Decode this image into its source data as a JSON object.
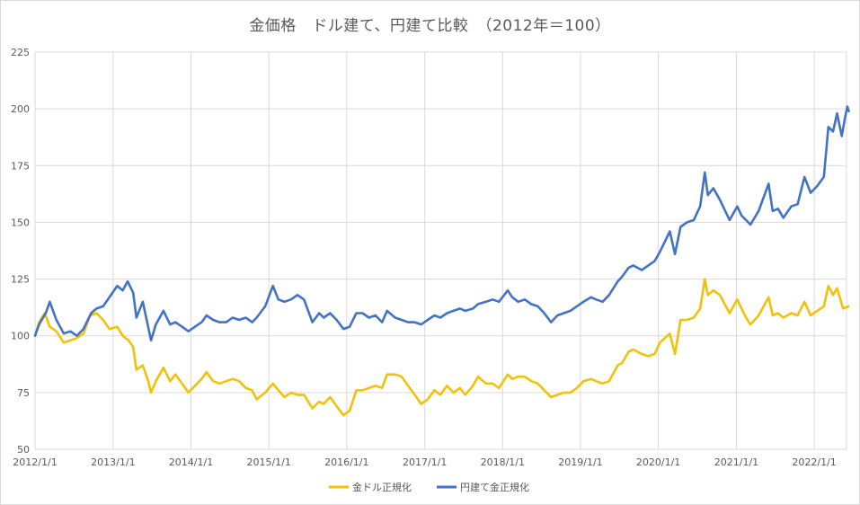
{
  "chart_data": {
    "type": "line",
    "title": "金価格　ドル建て、円建て比較　（2012年＝100）",
    "xlabel": "",
    "ylabel": "",
    "ylim": [
      50,
      225
    ],
    "yticks": [
      "50",
      "75",
      "100",
      "125",
      "150",
      "175",
      "200",
      "225"
    ],
    "xticks": [
      "2012/1/1",
      "2013/1/1",
      "2014/1/1",
      "2015/1/1",
      "2016/1/1",
      "2017/1/1",
      "2018/1/1",
      "2019/1/1",
      "2020/1/1",
      "2021/1/1",
      "2022/1/1"
    ],
    "xlim": [
      "2012-01-01",
      "2022-06-15"
    ],
    "grid": true,
    "legend_position": "bottom",
    "series": [
      {
        "name": "金ドル正規化",
        "color": "#f2c10a",
        "points": [
          [
            "2012-01-01",
            100
          ],
          [
            "2012-01-20",
            106
          ],
          [
            "2012-02-15",
            110
          ],
          [
            "2012-03-10",
            104
          ],
          [
            "2012-04-10",
            102
          ],
          [
            "2012-05-15",
            97
          ],
          [
            "2012-06-15",
            98
          ],
          [
            "2012-07-15",
            99
          ],
          [
            "2012-08-15",
            101
          ],
          [
            "2012-09-15",
            109
          ],
          [
            "2012-10-15",
            110
          ],
          [
            "2012-11-15",
            107
          ],
          [
            "2012-12-15",
            103
          ],
          [
            "2013-01-20",
            104
          ],
          [
            "2013-02-15",
            100
          ],
          [
            "2013-03-15",
            98
          ],
          [
            "2013-04-05",
            95
          ],
          [
            "2013-04-20",
            85
          ],
          [
            "2013-05-20",
            87
          ],
          [
            "2013-06-15",
            80
          ],
          [
            "2013-06-28",
            75
          ],
          [
            "2013-07-20",
            80
          ],
          [
            "2013-08-25",
            86
          ],
          [
            "2013-09-25",
            80
          ],
          [
            "2013-10-20",
            83
          ],
          [
            "2013-11-20",
            79
          ],
          [
            "2013-12-20",
            75
          ],
          [
            "2014-01-20",
            78
          ],
          [
            "2014-02-20",
            81
          ],
          [
            "2014-03-15",
            84
          ],
          [
            "2014-04-15",
            80
          ],
          [
            "2014-05-15",
            79
          ],
          [
            "2014-06-15",
            80
          ],
          [
            "2014-07-15",
            81
          ],
          [
            "2014-08-15",
            80
          ],
          [
            "2014-09-15",
            77
          ],
          [
            "2014-10-15",
            76
          ],
          [
            "2014-11-05",
            72
          ],
          [
            "2014-12-15",
            75
          ],
          [
            "2015-01-20",
            79
          ],
          [
            "2015-02-15",
            76
          ],
          [
            "2015-03-15",
            73
          ],
          [
            "2015-04-15",
            75
          ],
          [
            "2015-05-15",
            74
          ],
          [
            "2015-06-15",
            74
          ],
          [
            "2015-07-24",
            68
          ],
          [
            "2015-08-25",
            71
          ],
          [
            "2015-09-15",
            70
          ],
          [
            "2015-10-15",
            73
          ],
          [
            "2015-11-15",
            69
          ],
          [
            "2015-12-17",
            65
          ],
          [
            "2016-01-15",
            67
          ],
          [
            "2016-02-15",
            76
          ],
          [
            "2016-03-15",
            76
          ],
          [
            "2016-04-15",
            77
          ],
          [
            "2016-05-15",
            78
          ],
          [
            "2016-06-15",
            77
          ],
          [
            "2016-07-08",
            83
          ],
          [
            "2016-08-15",
            83
          ],
          [
            "2016-09-15",
            82
          ],
          [
            "2016-10-15",
            78
          ],
          [
            "2016-11-15",
            74
          ],
          [
            "2016-12-15",
            70
          ],
          [
            "2017-01-15",
            72
          ],
          [
            "2017-02-15",
            76
          ],
          [
            "2017-03-15",
            74
          ],
          [
            "2017-04-15",
            78
          ],
          [
            "2017-05-15",
            75
          ],
          [
            "2017-06-15",
            77
          ],
          [
            "2017-07-10",
            74
          ],
          [
            "2017-08-15",
            78
          ],
          [
            "2017-09-08",
            82
          ],
          [
            "2017-10-15",
            79
          ],
          [
            "2017-11-15",
            79
          ],
          [
            "2017-12-15",
            77
          ],
          [
            "2018-01-25",
            83
          ],
          [
            "2018-02-15",
            81
          ],
          [
            "2018-03-15",
            82
          ],
          [
            "2018-04-15",
            82
          ],
          [
            "2018-05-15",
            80
          ],
          [
            "2018-06-15",
            79
          ],
          [
            "2018-07-15",
            76
          ],
          [
            "2018-08-16",
            73
          ],
          [
            "2018-09-15",
            74
          ],
          [
            "2018-10-15",
            75
          ],
          [
            "2018-11-15",
            75
          ],
          [
            "2018-12-15",
            77
          ],
          [
            "2019-01-15",
            80
          ],
          [
            "2019-02-20",
            81
          ],
          [
            "2019-03-15",
            80
          ],
          [
            "2019-04-15",
            79
          ],
          [
            "2019-05-15",
            80
          ],
          [
            "2019-06-25",
            87
          ],
          [
            "2019-07-15",
            88
          ],
          [
            "2019-08-15",
            93
          ],
          [
            "2019-09-05",
            94
          ],
          [
            "2019-10-15",
            92
          ],
          [
            "2019-11-15",
            91
          ],
          [
            "2019-12-15",
            92
          ],
          [
            "2020-01-08",
            97
          ],
          [
            "2020-02-24",
            101
          ],
          [
            "2020-03-19",
            92
          ],
          [
            "2020-04-14",
            107
          ],
          [
            "2020-05-15",
            107
          ],
          [
            "2020-06-15",
            108
          ],
          [
            "2020-07-15",
            112
          ],
          [
            "2020-08-06",
            125
          ],
          [
            "2020-08-20",
            118
          ],
          [
            "2020-09-15",
            120
          ],
          [
            "2020-10-15",
            118
          ],
          [
            "2020-11-30",
            110
          ],
          [
            "2021-01-05",
            116
          ],
          [
            "2021-01-25",
            112
          ],
          [
            "2021-02-15",
            108
          ],
          [
            "2021-03-08",
            105
          ],
          [
            "2021-04-15",
            109
          ],
          [
            "2021-06-01",
            117
          ],
          [
            "2021-06-20",
            109
          ],
          [
            "2021-07-15",
            110
          ],
          [
            "2021-08-09",
            108
          ],
          [
            "2021-09-15",
            110
          ],
          [
            "2021-10-15",
            109
          ],
          [
            "2021-11-16",
            115
          ],
          [
            "2021-12-15",
            109
          ],
          [
            "2022-01-15",
            111
          ],
          [
            "2022-02-15",
            113
          ],
          [
            "2022-03-08",
            122
          ],
          [
            "2022-03-30",
            118
          ],
          [
            "2022-04-18",
            121
          ],
          [
            "2022-05-16",
            112
          ],
          [
            "2022-06-10",
            113
          ]
        ]
      },
      {
        "name": "円建て金正規化",
        "color": "#4472c4",
        "points": [
          [
            "2012-01-01",
            100
          ],
          [
            "2012-01-20",
            105
          ],
          [
            "2012-02-20",
            110
          ],
          [
            "2012-03-10",
            115
          ],
          [
            "2012-04-10",
            107
          ],
          [
            "2012-05-15",
            101
          ],
          [
            "2012-06-15",
            102
          ],
          [
            "2012-07-15",
            100
          ],
          [
            "2012-08-15",
            103
          ],
          [
            "2012-09-20",
            110
          ],
          [
            "2012-10-15",
            112
          ],
          [
            "2012-11-15",
            113
          ],
          [
            "2012-12-15",
            117
          ],
          [
            "2013-01-20",
            122
          ],
          [
            "2013-02-15",
            120
          ],
          [
            "2013-03-10",
            124
          ],
          [
            "2013-04-05",
            119
          ],
          [
            "2013-04-20",
            108
          ],
          [
            "2013-05-20",
            115
          ],
          [
            "2013-06-28",
            98
          ],
          [
            "2013-07-20",
            105
          ],
          [
            "2013-08-25",
            111
          ],
          [
            "2013-09-25",
            105
          ],
          [
            "2013-10-20",
            106
          ],
          [
            "2013-11-20",
            104
          ],
          [
            "2013-12-20",
            102
          ],
          [
            "2014-01-20",
            104
          ],
          [
            "2014-02-20",
            106
          ],
          [
            "2014-03-15",
            109
          ],
          [
            "2014-04-15",
            107
          ],
          [
            "2014-05-15",
            106
          ],
          [
            "2014-06-15",
            106
          ],
          [
            "2014-07-15",
            108
          ],
          [
            "2014-08-15",
            107
          ],
          [
            "2014-09-15",
            108
          ],
          [
            "2014-10-15",
            106
          ],
          [
            "2014-11-05",
            108
          ],
          [
            "2014-12-15",
            113
          ],
          [
            "2015-01-20",
            122
          ],
          [
            "2015-02-15",
            116
          ],
          [
            "2015-03-15",
            115
          ],
          [
            "2015-04-15",
            116
          ],
          [
            "2015-05-15",
            118
          ],
          [
            "2015-06-15",
            116
          ],
          [
            "2015-07-24",
            106
          ],
          [
            "2015-08-25",
            110
          ],
          [
            "2015-09-15",
            108
          ],
          [
            "2015-10-15",
            110
          ],
          [
            "2015-11-15",
            107
          ],
          [
            "2015-12-17",
            103
          ],
          [
            "2016-01-15",
            104
          ],
          [
            "2016-02-15",
            110
          ],
          [
            "2016-03-15",
            110
          ],
          [
            "2016-04-15",
            108
          ],
          [
            "2016-05-15",
            109
          ],
          [
            "2016-06-15",
            106
          ],
          [
            "2016-07-08",
            111
          ],
          [
            "2016-08-15",
            108
          ],
          [
            "2016-09-15",
            107
          ],
          [
            "2016-10-15",
            106
          ],
          [
            "2016-11-15",
            106
          ],
          [
            "2016-12-15",
            105
          ],
          [
            "2017-01-15",
            107
          ],
          [
            "2017-02-15",
            109
          ],
          [
            "2017-03-15",
            108
          ],
          [
            "2017-04-15",
            110
          ],
          [
            "2017-05-15",
            111
          ],
          [
            "2017-06-15",
            112
          ],
          [
            "2017-07-10",
            111
          ],
          [
            "2017-08-15",
            112
          ],
          [
            "2017-09-08",
            114
          ],
          [
            "2017-10-15",
            115
          ],
          [
            "2017-11-15",
            116
          ],
          [
            "2017-12-15",
            115
          ],
          [
            "2018-01-25",
            120
          ],
          [
            "2018-02-15",
            117
          ],
          [
            "2018-03-15",
            115
          ],
          [
            "2018-04-15",
            116
          ],
          [
            "2018-05-15",
            114
          ],
          [
            "2018-06-15",
            113
          ],
          [
            "2018-07-15",
            110
          ],
          [
            "2018-08-16",
            106
          ],
          [
            "2018-09-15",
            109
          ],
          [
            "2018-10-15",
            110
          ],
          [
            "2018-11-15",
            111
          ],
          [
            "2018-12-15",
            113
          ],
          [
            "2019-01-15",
            115
          ],
          [
            "2019-02-20",
            117
          ],
          [
            "2019-03-15",
            116
          ],
          [
            "2019-04-15",
            115
          ],
          [
            "2019-05-15",
            118
          ],
          [
            "2019-06-25",
            124
          ],
          [
            "2019-07-15",
            126
          ],
          [
            "2019-08-15",
            130
          ],
          [
            "2019-09-05",
            131
          ],
          [
            "2019-10-15",
            129
          ],
          [
            "2019-11-15",
            131
          ],
          [
            "2019-12-15",
            133
          ],
          [
            "2020-01-08",
            137
          ],
          [
            "2020-02-24",
            146
          ],
          [
            "2020-03-19",
            136
          ],
          [
            "2020-04-14",
            148
          ],
          [
            "2020-05-15",
            150
          ],
          [
            "2020-06-15",
            151
          ],
          [
            "2020-07-15",
            157
          ],
          [
            "2020-08-06",
            172
          ],
          [
            "2020-08-20",
            162
          ],
          [
            "2020-09-15",
            165
          ],
          [
            "2020-10-15",
            160
          ],
          [
            "2020-11-30",
            151
          ],
          [
            "2021-01-05",
            157
          ],
          [
            "2021-01-25",
            153
          ],
          [
            "2021-02-15",
            151
          ],
          [
            "2021-03-08",
            149
          ],
          [
            "2021-04-15",
            155
          ],
          [
            "2021-06-01",
            167
          ],
          [
            "2021-06-20",
            155
          ],
          [
            "2021-07-15",
            156
          ],
          [
            "2021-08-09",
            152
          ],
          [
            "2021-09-15",
            157
          ],
          [
            "2021-10-15",
            158
          ],
          [
            "2021-11-16",
            170
          ],
          [
            "2021-12-15",
            163
          ],
          [
            "2022-01-15",
            166
          ],
          [
            "2022-02-15",
            170
          ],
          [
            "2022-03-08",
            192
          ],
          [
            "2022-03-30",
            190
          ],
          [
            "2022-04-18",
            198
          ],
          [
            "2022-05-10",
            188
          ],
          [
            "2022-05-25",
            196
          ],
          [
            "2022-06-05",
            201
          ],
          [
            "2022-06-12",
            199
          ]
        ]
      }
    ]
  }
}
